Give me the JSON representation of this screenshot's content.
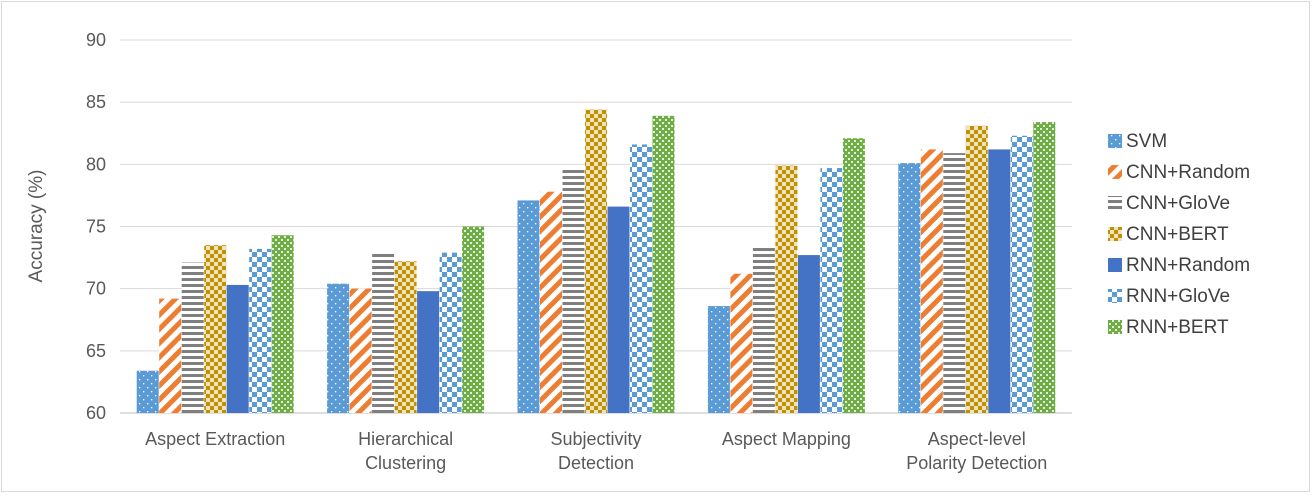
{
  "chart_data": {
    "type": "bar",
    "title": "",
    "xlabel": "",
    "ylabel": "Accuracy (%)",
    "ylim": [
      60,
      90
    ],
    "yticks": [
      60,
      65,
      70,
      75,
      80,
      85,
      90
    ],
    "grid": true,
    "legend_position": "right",
    "categories": [
      [
        "Aspect Extraction"
      ],
      [
        "Hierarchical",
        "Clustering"
      ],
      [
        "Subjectivity",
        "Detection"
      ],
      [
        "Aspect Mapping"
      ],
      [
        "Aspect-level",
        "Polarity Detection"
      ]
    ],
    "series": [
      {
        "name": "SVM",
        "color": "#5b9bd5",
        "pattern": "dots",
        "values": [
          63.4,
          70.4,
          77.1,
          68.6,
          80.1
        ]
      },
      {
        "name": "CNN+Random",
        "color": "#ed7d31",
        "pattern": "diagonal-stripes",
        "values": [
          69.2,
          70.0,
          77.8,
          71.2,
          81.2
        ]
      },
      {
        "name": "CNN+GloVe",
        "color": "#7f7f7f",
        "pattern": "horizontal-stripes",
        "values": [
          72.1,
          72.8,
          79.6,
          73.5,
          80.9
        ]
      },
      {
        "name": "CNN+BERT",
        "color": "#bf9000",
        "pattern": "checker",
        "values": [
          73.5,
          72.2,
          84.4,
          79.9,
          83.1
        ]
      },
      {
        "name": "RNN+Random",
        "color": "#4472c4",
        "pattern": "solid",
        "values": [
          70.3,
          69.8,
          76.6,
          72.7,
          81.2
        ]
      },
      {
        "name": "RNN+GloVe",
        "color": "#5b9bd5",
        "pattern": "large-checker",
        "values": [
          73.2,
          72.9,
          81.6,
          79.7,
          82.3
        ]
      },
      {
        "name": "RNN+BERT",
        "color": "#70ad47",
        "pattern": "small-checker",
        "values": [
          74.3,
          75.0,
          83.9,
          82.1,
          83.4
        ]
      }
    ]
  }
}
